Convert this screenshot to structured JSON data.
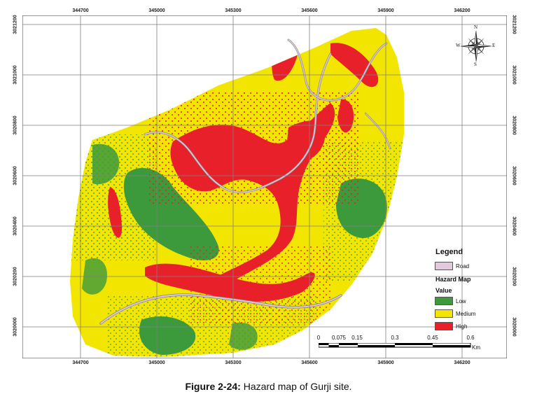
{
  "colors": {
    "low": "#3c9a3c",
    "medium": "#f2e600",
    "high": "#e8202a",
    "road": "#e3c9e0",
    "road_outline": "#8a8a8a",
    "grid": "#7f7f7f"
  },
  "axes": {
    "top_ticks": [
      "344700",
      "345000",
      "345300",
      "345600",
      "345900",
      "346200"
    ],
    "bottom_ticks": [
      "344700",
      "345000",
      "345300",
      "345600",
      "345900",
      "346200"
    ],
    "left_ticks": [
      "3021200",
      "3021000",
      "3020800",
      "3020600",
      "3020400",
      "3020200",
      "3020000"
    ],
    "right_ticks": [
      "3021200",
      "3021000",
      "3020800",
      "3020600",
      "3020400",
      "3020200",
      "3020000"
    ]
  },
  "compass": {
    "north": "N",
    "south": "S",
    "east": "E",
    "west": "W",
    "icon": "compass-rose-icon"
  },
  "legend": {
    "title": "Legend",
    "road_label": "Road",
    "hazard_heading": "Hazard Map",
    "value_heading": "Value",
    "classes": [
      {
        "label": "Low",
        "color_key": "low"
      },
      {
        "label": "Medium",
        "color_key": "medium"
      },
      {
        "label": "High",
        "color_key": "high"
      }
    ]
  },
  "scale_bar": {
    "labels": [
      "0",
      "0.075",
      "0.15",
      "0.3",
      "0.45",
      "0.6"
    ],
    "unit": "Km"
  },
  "caption": {
    "label": "Figure 2-24:",
    "text": " Hazard map of Gurji site."
  }
}
